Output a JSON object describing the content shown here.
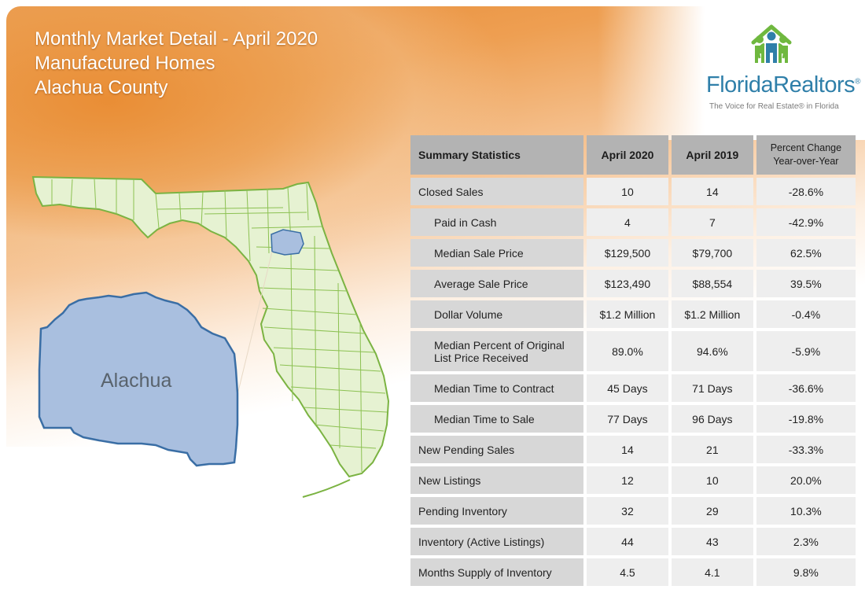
{
  "header": {
    "title_line1": "Monthly Market Detail - April 2020",
    "title_line2": "Manufactured Homes",
    "title_line3": "Alachua County"
  },
  "logo": {
    "name": "FloridaRealtors",
    "registered": "®",
    "tagline": "The Voice for Real Estate® in Florida",
    "brand_blue": "#2f7fa9",
    "brand_green": "#6fb83f"
  },
  "map": {
    "county_label": "Alachua",
    "state_fill": "#e6f2d2",
    "state_stroke": "#7bb342",
    "county_fill": "#a9bfdf",
    "county_stroke": "#3a6ea5"
  },
  "table": {
    "headers": {
      "label": "Summary Statistics",
      "current": "April 2020",
      "prior": "April 2019",
      "pct_line1": "Percent Change",
      "pct_line2": "Year-over-Year"
    },
    "rows": [
      {
        "label": "Closed Sales",
        "current": "10",
        "prior": "14",
        "pct": "-28.6%"
      },
      {
        "label": "Paid in Cash",
        "current": "4",
        "prior": "7",
        "pct": "-42.9%"
      },
      {
        "label": "Median Sale Price",
        "current": "$129,500",
        "prior": "$79,700",
        "pct": "62.5%"
      },
      {
        "label": "Average Sale Price",
        "current": "$123,490",
        "prior": "$88,554",
        "pct": "39.5%"
      },
      {
        "label": "Dollar Volume",
        "current": "$1.2 Million",
        "prior": "$1.2 Million",
        "pct": "-0.4%"
      },
      {
        "label_line1": "Median Percent of Original",
        "label_line2": "List Price Received",
        "current": "89.0%",
        "prior": "94.6%",
        "pct": "-5.9%"
      },
      {
        "label": "Median Time to Contract",
        "current": "45 Days",
        "prior": "71 Days",
        "pct": "-36.6%"
      },
      {
        "label": "Median Time to Sale",
        "current": "77 Days",
        "prior": "96 Days",
        "pct": "-19.8%"
      },
      {
        "label": "New Pending Sales",
        "current": "14",
        "prior": "21",
        "pct": "-33.3%"
      },
      {
        "label": "New Listings",
        "current": "12",
        "prior": "10",
        "pct": "20.0%"
      },
      {
        "label": "Pending Inventory",
        "current": "32",
        "prior": "29",
        "pct": "10.3%"
      },
      {
        "label": "Inventory (Active Listings)",
        "current": "44",
        "prior": "43",
        "pct": "2.3%"
      },
      {
        "label": "Months Supply of Inventory",
        "current": "4.5",
        "prior": "4.1",
        "pct": "9.8%"
      }
    ]
  }
}
